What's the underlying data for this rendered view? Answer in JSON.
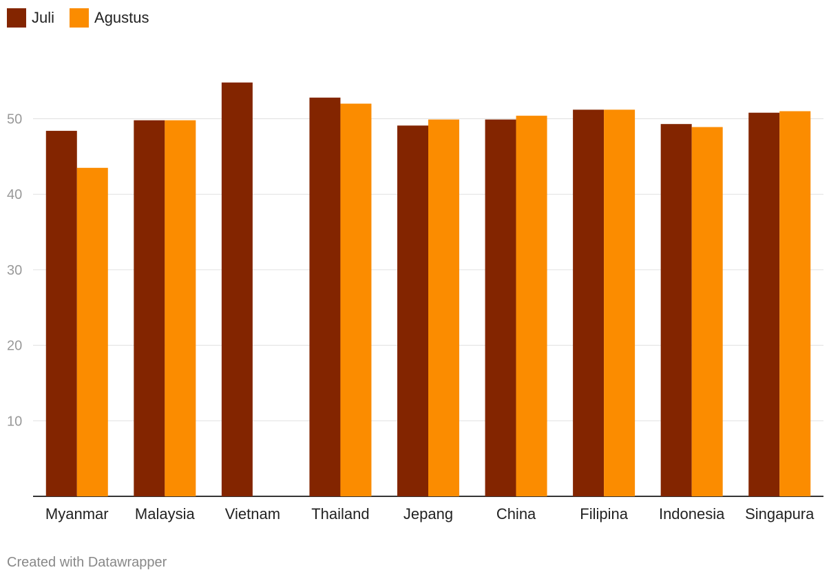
{
  "chart_data": {
    "type": "bar",
    "categories": [
      "Myanmar",
      "Malaysia",
      "Vietnam",
      "Thailand",
      "Jepang",
      "China",
      "Filipina",
      "Indonesia",
      "Singapura"
    ],
    "series": [
      {
        "name": "Juli",
        "color": "#832500",
        "values": [
          48.4,
          49.8,
          54.8,
          52.8,
          49.1,
          49.9,
          51.2,
          49.3,
          50.8
        ]
      },
      {
        "name": "Agustus",
        "color": "#FB8C00",
        "values": [
          43.5,
          49.8,
          null,
          52.0,
          49.9,
          50.4,
          51.2,
          48.9,
          51.0
        ]
      }
    ],
    "y_ticks": [
      10,
      20,
      30,
      40,
      50
    ],
    "ylim": [
      0,
      58
    ],
    "grid": true,
    "legend": "top-left",
    "title": "",
    "xlabel": "",
    "ylabel": ""
  },
  "footer": "Created with Datawrapper"
}
